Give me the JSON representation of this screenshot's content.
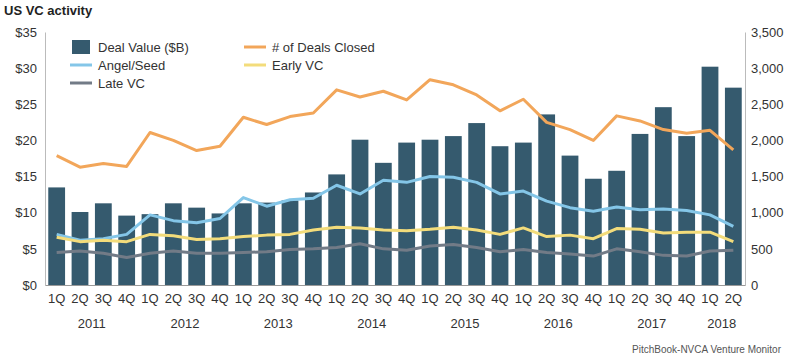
{
  "chart_data": {
    "type": "bar",
    "title": "US VC activity",
    "source": "PitchBook-NVCA Venture Monitor",
    "categories": [
      "1Q",
      "2Q",
      "3Q",
      "4Q",
      "1Q",
      "2Q",
      "3Q",
      "4Q",
      "1Q",
      "2Q",
      "3Q",
      "4Q",
      "1Q",
      "2Q",
      "3Q",
      "4Q",
      "1Q",
      "2Q",
      "3Q",
      "4Q",
      "1Q",
      "2Q",
      "3Q",
      "4Q",
      "1Q",
      "2Q",
      "3Q",
      "4Q",
      "1Q",
      "2Q"
    ],
    "category_groups": [
      {
        "label": "2011",
        "count": 4
      },
      {
        "label": "2012",
        "count": 4
      },
      {
        "label": "2013",
        "count": 4
      },
      {
        "label": "2014",
        "count": 4
      },
      {
        "label": "2015",
        "count": 4
      },
      {
        "label": "2016",
        "count": 4
      },
      {
        "label": "2017",
        "count": 4
      },
      {
        "label": "2018",
        "count": 2
      }
    ],
    "ylim": [
      0,
      35
    ],
    "yticks": [
      {
        "value": 0,
        "label": "$0"
      },
      {
        "value": 5,
        "label": "$5"
      },
      {
        "value": 10,
        "label": "$10"
      },
      {
        "value": 15,
        "label": "$15"
      },
      {
        "value": 20,
        "label": "$20"
      },
      {
        "value": 25,
        "label": "$25"
      },
      {
        "value": 30,
        "label": "$30"
      },
      {
        "value": 35,
        "label": "$35"
      }
    ],
    "y2lim": [
      0,
      3500
    ],
    "y2ticks": [
      0,
      500,
      {
        "value": 1000,
        "label": "1,000"
      },
      {
        "value": 1500,
        "label": "1,500"
      },
      {
        "value": 2000,
        "label": "2,000"
      },
      {
        "value": 2500,
        "label": "2,500"
      },
      {
        "value": 3000,
        "label": "3,000"
      },
      {
        "value": 3500,
        "label": "3,500"
      }
    ],
    "grid": false,
    "legend": "top-left",
    "series": [
      {
        "name": "Deal Value ($B)",
        "type": "bar",
        "color": "#355a6e",
        "values": [
          13.5,
          10.1,
          11.3,
          9.6,
          9.8,
          11.3,
          10.7,
          9.9,
          11.3,
          11.4,
          11.7,
          12.8,
          15.3,
          20.1,
          16.9,
          19.7,
          20.1,
          20.6,
          22.4,
          19.2,
          19.7,
          23.6,
          17.9,
          14.7,
          15.8,
          20.9,
          24.6,
          20.6,
          30.2,
          27.3
        ]
      },
      {
        "name": "# of Deals Closed",
        "type": "line",
        "axis": "y2",
        "color": "#f2a65a",
        "values": [
          1790,
          1630,
          1680,
          1640,
          2110,
          2000,
          1860,
          1920,
          2320,
          2220,
          2330,
          2380,
          2700,
          2600,
          2680,
          2560,
          2840,
          2770,
          2630,
          2410,
          2570,
          2250,
          2150,
          2000,
          2340,
          2270,
          2150,
          2100,
          2140,
          1870
        ]
      },
      {
        "name": "Angel/Seed",
        "type": "line",
        "axis": "y2",
        "color": "#84c6e8",
        "values": [
          700,
          620,
          640,
          700,
          970,
          890,
          860,
          920,
          1210,
          1090,
          1180,
          1200,
          1380,
          1260,
          1450,
          1420,
          1500,
          1490,
          1420,
          1260,
          1300,
          1160,
          1070,
          1020,
          1080,
          1040,
          1050,
          1030,
          970,
          810
        ]
      },
      {
        "name": "Early VC",
        "type": "line",
        "axis": "y2",
        "color": "#f3dc7b",
        "values": [
          660,
          600,
          620,
          600,
          700,
          680,
          630,
          640,
          670,
          690,
          700,
          760,
          800,
          790,
          760,
          750,
          770,
          800,
          760,
          700,
          790,
          670,
          690,
          640,
          780,
          770,
          720,
          730,
          730,
          600
        ]
      },
      {
        "name": "Late VC",
        "type": "line",
        "axis": "y2",
        "color": "#727b87",
        "values": [
          450,
          470,
          440,
          380,
          440,
          470,
          440,
          440,
          450,
          460,
          490,
          500,
          520,
          570,
          500,
          480,
          540,
          560,
          520,
          460,
          490,
          450,
          430,
          400,
          500,
          460,
          410,
          400,
          470,
          480
        ]
      }
    ]
  }
}
